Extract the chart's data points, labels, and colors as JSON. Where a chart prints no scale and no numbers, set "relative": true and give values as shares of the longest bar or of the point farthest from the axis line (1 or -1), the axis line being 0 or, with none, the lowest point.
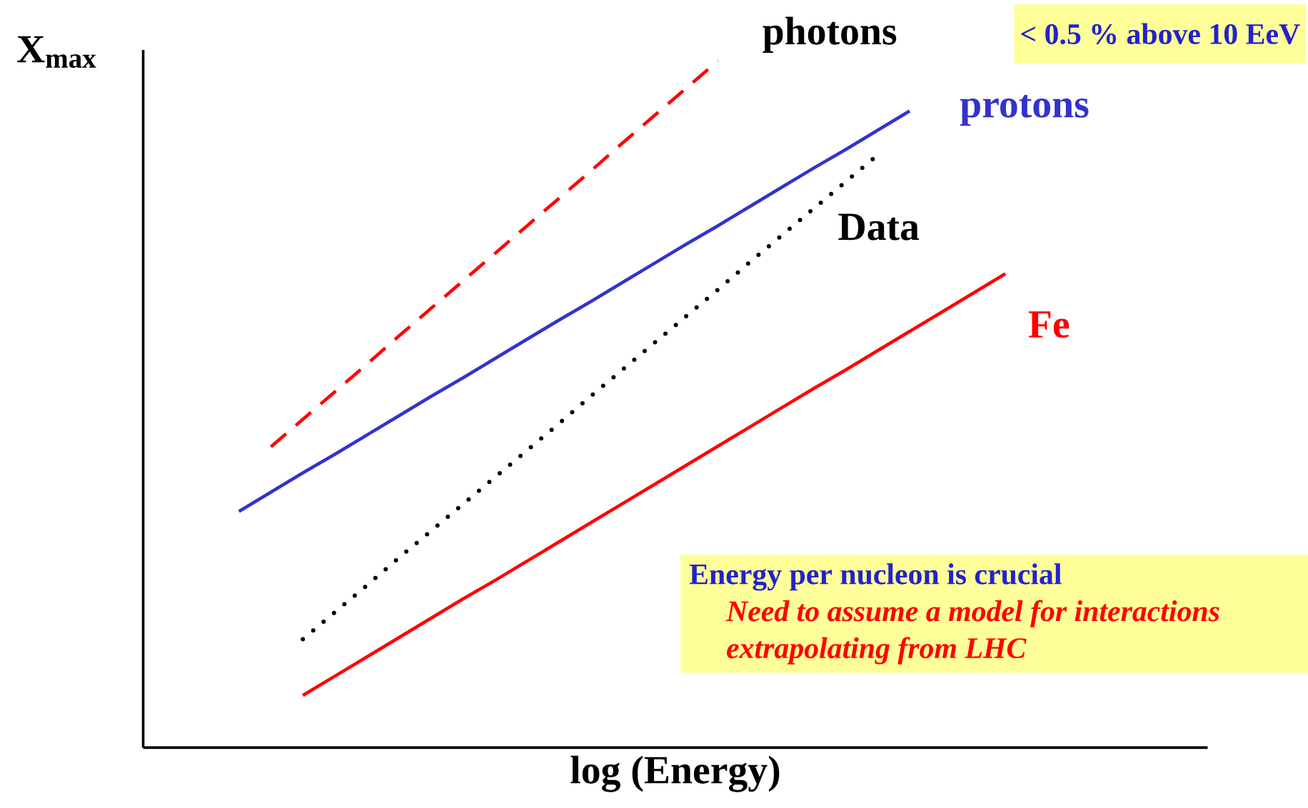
{
  "chart_data": {
    "type": "line",
    "relative": true,
    "xlabel": "log (Energy)",
    "ylabel": "X$_{max}$",
    "categories": [
      null,
      null,
      null,
      null,
      null,
      null,
      null,
      null,
      null,
      null,
      null,
      null,
      null,
      null,
      null,
      null,
      null,
      null,
      null,
      null,
      null,
      null,
      null,
      null,
      null
    ],
    "series": [
      {
        "name": "photons",
        "color": "#ff0000",
        "line_style": "dashed",
        "values": [
          null,
          0.438,
          0.478,
          0.518,
          0.558,
          0.599,
          0.639,
          0.679,
          0.719,
          0.759,
          0.799,
          0.839,
          0.88,
          0.92,
          0.96,
          1,
          null,
          null,
          null,
          null,
          null,
          null,
          null,
          null,
          null
        ]
      },
      {
        "name": "protons",
        "color": "#3333cc",
        "line_style": "solid",
        "values": [
          0.344,
          0.372,
          0.4,
          0.427,
          0.455,
          0.483,
          0.511,
          0.538,
          0.566,
          0.594,
          0.622,
          0.649,
          0.677,
          0.705,
          0.733,
          0.76,
          0.788,
          0.816,
          0.844,
          0.871,
          0.899,
          0.927,
          null,
          null,
          null
        ]
      },
      {
        "name": "Data",
        "color": "#000000",
        "line_style": "dotted",
        "values": [
          null,
          null,
          0.158,
          0.197,
          0.236,
          0.276,
          0.315,
          0.354,
          0.393,
          0.432,
          0.471,
          0.511,
          0.55,
          0.589,
          0.628,
          0.667,
          0.707,
          0.746,
          0.785,
          0.824,
          0.863,
          null,
          null,
          null,
          null
        ]
      },
      {
        "name": "Fe",
        "color": "#ff0000",
        "line_style": "solid",
        "values": [
          null,
          null,
          0.076,
          0.104,
          0.132,
          0.16,
          0.188,
          0.216,
          0.243,
          0.271,
          0.299,
          0.327,
          0.355,
          0.383,
          0.411,
          0.439,
          0.467,
          0.495,
          0.523,
          0.55,
          0.578,
          0.606,
          0.634,
          0.662,
          0.69
        ]
      }
    ],
    "annotations": [
      "< 0.5 % above 10 EeV",
      "Energy per nucleon is crucial",
      "Need to assume a model for interactions extrapolating from LHC"
    ]
  }
}
